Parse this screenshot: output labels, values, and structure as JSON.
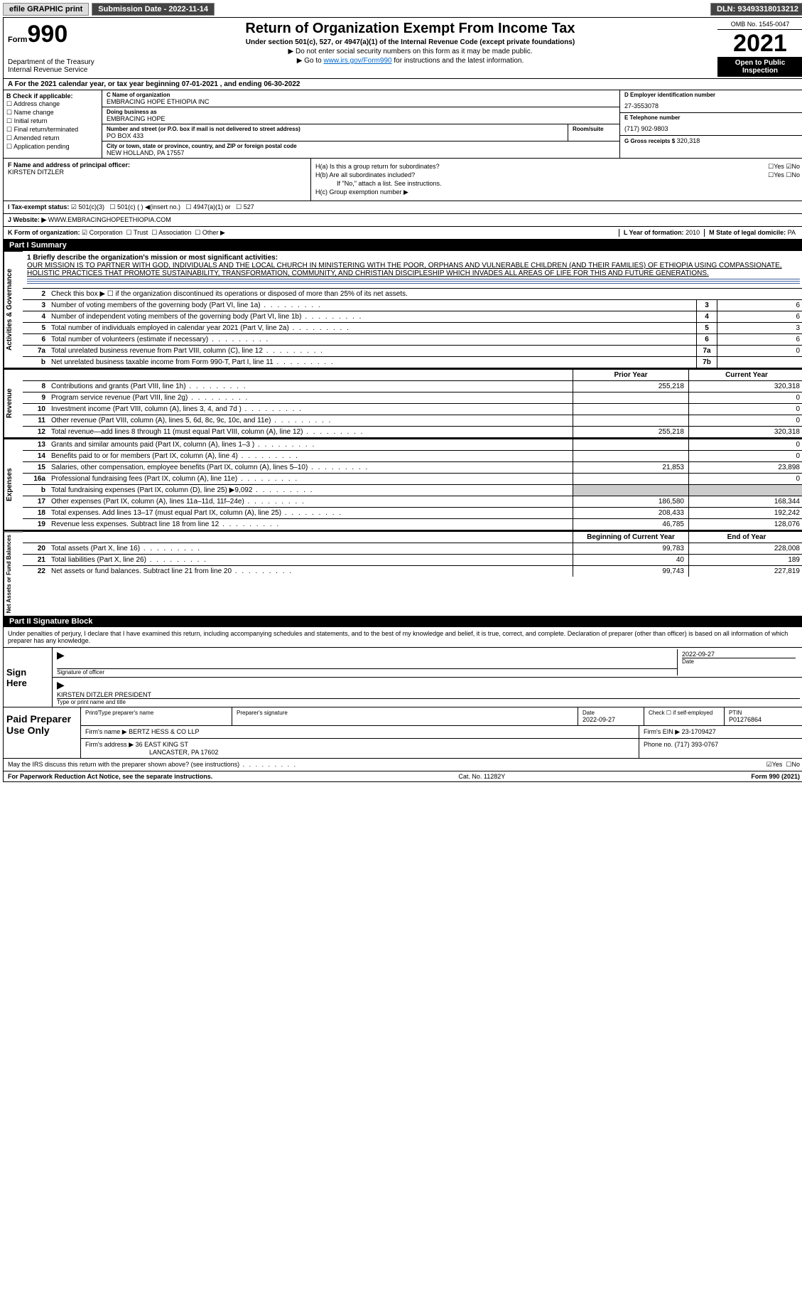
{
  "top_bar": {
    "efile": "efile GRAPHIC print",
    "submission": "Submission Date - 2022-11-14",
    "dln": "DLN: 93493318013212"
  },
  "header": {
    "form_word": "Form",
    "form_num": "990",
    "title": "Return of Organization Exempt From Income Tax",
    "sub": "Under section 501(c), 527, or 4947(a)(1) of the Internal Revenue Code (except private foundations)",
    "note1": "▶ Do not enter social security numbers on this form as it may be made public.",
    "note2_pre": "▶ Go to ",
    "note2_link": "www.irs.gov/Form990",
    "note2_post": " for instructions and the latest information.",
    "dept": "Department of the Treasury Internal Revenue Service",
    "omb": "OMB No. 1545-0047",
    "year": "2021",
    "open": "Open to Public Inspection"
  },
  "row_a": "For the 2021 calendar year, or tax year beginning 07-01-2021     , and ending 06-30-2022",
  "check_b": {
    "title": "B Check if applicable:",
    "items": [
      "Address change",
      "Name change",
      "Initial return",
      "Final return/terminated",
      "Amended return",
      "Application pending"
    ]
  },
  "org": {
    "name_lbl": "C Name of organization",
    "name": "EMBRACING HOPE ETHIOPIA INC",
    "dba_lbl": "Doing business as",
    "dba": "EMBRACING HOPE",
    "street_lbl": "Number and street (or P.O. box if mail is not delivered to street address)",
    "room_lbl": "Room/suite",
    "street": "PO BOX 433",
    "city_lbl": "City or town, state or province, country, and ZIP or foreign postal code",
    "city": "NEW HOLLAND, PA  17557"
  },
  "right_ident": {
    "ein_lbl": "D Employer identification number",
    "ein": "27-3553078",
    "tel_lbl": "E Telephone number",
    "tel": "(717) 902-9803",
    "gross_lbl": "G Gross receipts $",
    "gross": "320,318"
  },
  "f_block": {
    "lbl": "F Name and address of principal officer:",
    "name": "KIRSTEN DITZLER"
  },
  "h_block": {
    "ha": "H(a)  Is this a group return for subordinates?",
    "hb": "H(b)  Are all subordinates included?",
    "hb_note": "If \"No,\" attach a list. See instructions.",
    "hc": "H(c)  Group exemption number ▶",
    "yes": "☐Yes",
    "no_checked": "☑No",
    "no": "☐No"
  },
  "tax_status": {
    "lbl": "I    Tax-exempt status:",
    "c501c3": "☑ 501(c)(3)",
    "c501c": "☐ 501(c) (   ) ◀(insert no.)",
    "c4947": "☐ 4947(a)(1) or",
    "c527": "☐ 527"
  },
  "website": {
    "lbl": "J   Website: ▶",
    "val": "WWW.EMBRACINGHOPEETHIOPIA.COM"
  },
  "k_row": {
    "lbl": "K Form of organization:",
    "corp": "☑ Corporation",
    "trust": "☐ Trust",
    "assoc": "☐ Association",
    "other": "☐ Other ▶",
    "year_lbl": "L Year of formation:",
    "year": "2010",
    "state_lbl": "M State of legal domicile:",
    "state": "PA"
  },
  "part1": {
    "title": "Part I      Summary",
    "mission_lbl": "1   Briefly describe the organization's mission or most significant activities:",
    "mission": "OUR MISSION IS TO PARTNER WITH GOD, INDIVIDUALS AND THE LOCAL CHURCH IN MINISTERING WITH THE POOR, ORPHANS AND VULNERABLE CHILDREN (AND THEIR FAMILIES) OF ETHIOPIA USING COMPASSIONATE, HOLISTIC PRACTICES THAT PROMOTE SUSTAINABILITY, TRANSFORMATION, COMMUNITY, AND CHRISTIAN DISCIPLESHIP WHICH INVADES ALL AREAS OF LIFE FOR THIS AND FUTURE GENERATIONS.",
    "line2": "Check this box ▶ ☐  if the organization discontinued its operations or disposed of more than 25% of its net assets.",
    "vtab_gov": "Activities & Governance",
    "vtab_rev": "Revenue",
    "vtab_exp": "Expenses",
    "vtab_net": "Net Assets or Fund Balances",
    "lines_gov": [
      {
        "n": "3",
        "d": "Number of voting members of the governing body (Part VI, line 1a)",
        "box": "3",
        "v": "6"
      },
      {
        "n": "4",
        "d": "Number of independent voting members of the governing body (Part VI, line 1b)",
        "box": "4",
        "v": "6"
      },
      {
        "n": "5",
        "d": "Total number of individuals employed in calendar year 2021 (Part V, line 2a)",
        "box": "5",
        "v": "3"
      },
      {
        "n": "6",
        "d": "Total number of volunteers (estimate if necessary)",
        "box": "6",
        "v": "6"
      },
      {
        "n": "7a",
        "d": "Total unrelated business revenue from Part VIII, column (C), line 12",
        "box": "7a",
        "v": "0"
      },
      {
        "n": "b",
        "d": "Net unrelated business taxable income from Form 990-T, Part I, line 11",
        "box": "7b",
        "v": ""
      }
    ],
    "col_prior": "Prior Year",
    "col_current": "Current Year",
    "lines_rev": [
      {
        "n": "8",
        "d": "Contributions and grants (Part VIII, line 1h)",
        "p": "255,218",
        "c": "320,318"
      },
      {
        "n": "9",
        "d": "Program service revenue (Part VIII, line 2g)",
        "p": "",
        "c": "0"
      },
      {
        "n": "10",
        "d": "Investment income (Part VIII, column (A), lines 3, 4, and 7d )",
        "p": "",
        "c": "0"
      },
      {
        "n": "11",
        "d": "Other revenue (Part VIII, column (A), lines 5, 6d, 8c, 9c, 10c, and 11e)",
        "p": "",
        "c": "0"
      },
      {
        "n": "12",
        "d": "Total revenue—add lines 8 through 11 (must equal Part VIII, column (A), line 12)",
        "p": "255,218",
        "c": "320,318"
      }
    ],
    "lines_exp": [
      {
        "n": "13",
        "d": "Grants and similar amounts paid (Part IX, column (A), lines 1–3 )",
        "p": "",
        "c": "0"
      },
      {
        "n": "14",
        "d": "Benefits paid to or for members (Part IX, column (A), line 4)",
        "p": "",
        "c": "0"
      },
      {
        "n": "15",
        "d": "Salaries, other compensation, employee benefits (Part IX, column (A), lines 5–10)",
        "p": "21,853",
        "c": "23,898"
      },
      {
        "n": "16a",
        "d": "Professional fundraising fees (Part IX, column (A), line 11e)",
        "p": "",
        "c": "0"
      },
      {
        "n": "b",
        "d": "Total fundraising expenses (Part IX, column (D), line 25) ▶9,092",
        "p": "GREY",
        "c": "GREY"
      },
      {
        "n": "17",
        "d": "Other expenses (Part IX, column (A), lines 11a–11d, 11f–24e)",
        "p": "186,580",
        "c": "168,344"
      },
      {
        "n": "18",
        "d": "Total expenses. Add lines 13–17 (must equal Part IX, column (A), line 25)",
        "p": "208,433",
        "c": "192,242"
      },
      {
        "n": "19",
        "d": "Revenue less expenses. Subtract line 18 from line 12",
        "p": "46,785",
        "c": "128,076"
      }
    ],
    "col_begin": "Beginning of Current Year",
    "col_end": "End of Year",
    "lines_net": [
      {
        "n": "20",
        "d": "Total assets (Part X, line 16)",
        "p": "99,783",
        "c": "228,008"
      },
      {
        "n": "21",
        "d": "Total liabilities (Part X, line 26)",
        "p": "40",
        "c": "189"
      },
      {
        "n": "22",
        "d": "Net assets or fund balances. Subtract line 21 from line 20",
        "p": "99,743",
        "c": "227,819"
      }
    ]
  },
  "part2": {
    "title": "Part II      Signature Block",
    "declare": "Under penalties of perjury, I declare that I have examined this return, including accompanying schedules and statements, and to the best of my knowledge and belief, it is true, correct, and complete. Declaration of preparer (other than officer) is based on all information of which preparer has any knowledge.",
    "sign_here": "Sign Here",
    "sig_officer_lbl": "Signature of officer",
    "sig_date": "2022-09-27",
    "date_lbl": "Date",
    "officer_name": "KIRSTEN DITZLER  PRESIDENT",
    "type_lbl": "Type or print name and title"
  },
  "prep": {
    "title": "Paid Preparer Use Only",
    "name_lbl": "Print/Type preparer's name",
    "sig_lbl": "Preparer's signature",
    "date_lbl": "Date",
    "date": "2022-09-27",
    "check_lbl": "Check ☐ if self-employed",
    "ptin_lbl": "PTIN",
    "ptin": "P01276864",
    "firm_name_lbl": "Firm's name     ▶",
    "firm_name": "BERTZ HESS & CO LLP",
    "firm_ein_lbl": "Firm's EIN ▶",
    "firm_ein": "23-1709427",
    "firm_addr_lbl": "Firm's address ▶",
    "firm_addr1": "36 EAST KING ST",
    "firm_addr2": "LANCASTER, PA  17602",
    "phone_lbl": "Phone no.",
    "phone": "(717) 393-0767"
  },
  "footer": {
    "discuss": "May the IRS discuss this return with the preparer shown above? (see instructions)",
    "yes": "☑Yes",
    "no": "☐No",
    "paperwork": "For Paperwork Reduction Act Notice, see the separate instructions.",
    "cat": "Cat. No. 11282Y",
    "form": "Form 990 (2021)"
  }
}
